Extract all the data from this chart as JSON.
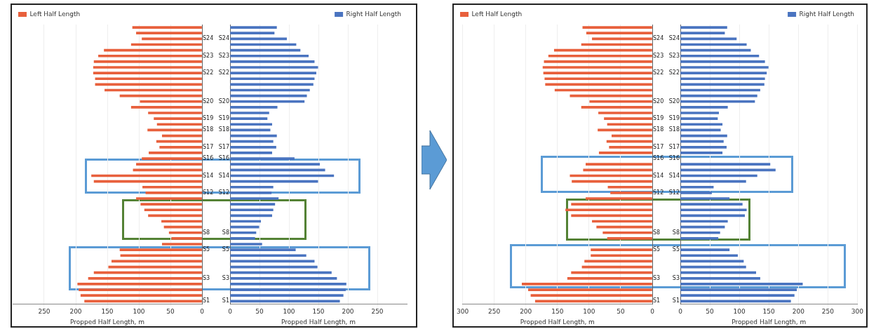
{
  "chart_data": [
    {
      "type": "bar",
      "orientation": "horizontal",
      "categories": [
        null,
        null,
        "S24",
        null,
        null,
        "S23",
        null,
        null,
        "S22",
        null,
        null,
        null,
        null,
        "S20",
        null,
        null,
        "S19",
        null,
        "S18",
        null,
        null,
        "S17",
        null,
        "S16",
        null,
        null,
        "S14",
        null,
        null,
        "S12",
        null,
        null,
        null,
        null,
        null,
        null,
        "S8",
        null,
        null,
        "S5",
        null,
        null,
        null,
        null,
        "S3",
        null,
        null,
        null,
        "S1"
      ],
      "series": [
        {
          "name": "Left Half Length",
          "color": "#e8603c",
          "values": [
            110,
            104,
            95,
            112,
            155,
            164,
            171,
            172,
            172,
            169,
            169,
            154,
            130,
            98,
            112,
            85,
            76,
            71,
            86,
            63,
            72,
            67,
            84,
            95,
            104,
            109,
            175,
            171,
            94,
            89,
            104,
            97,
            91,
            85,
            64,
            60,
            52,
            48,
            63,
            130,
            129,
            143,
            148,
            171,
            180,
            197,
            195,
            192,
            186
          ]
        }
      ],
      "xlim": [
        300,
        0
      ],
      "xticks": [
        250,
        200,
        150,
        100,
        50,
        0
      ],
      "xlabel": "Propped Half Length, m",
      "legend": "top left",
      "grid": "x"
    },
    {
      "type": "bar",
      "orientation": "horizontal",
      "categories": [
        null,
        null,
        "S24",
        null,
        null,
        "S23",
        null,
        null,
        "S22",
        null,
        null,
        null,
        null,
        "S20",
        null,
        null,
        "S19",
        null,
        "S18",
        null,
        null,
        "S17",
        null,
        "S16",
        null,
        null,
        "S14",
        null,
        null,
        "S12",
        null,
        null,
        null,
        null,
        null,
        null,
        "S8",
        null,
        null,
        "S5",
        null,
        null,
        null,
        null,
        "S3",
        null,
        null,
        null,
        "S1"
      ],
      "series": [
        {
          "name": "Right Half Length",
          "color": "#4a74c0",
          "values": [
            79,
            75,
            96,
            112,
            119,
            133,
            143,
            149,
            146,
            143,
            141,
            135,
            130,
            126,
            80,
            66,
            63,
            71,
            68,
            79,
            73,
            78,
            71,
            109,
            152,
            161,
            176,
            149,
            73,
            70,
            82,
            76,
            73,
            71,
            52,
            49,
            44,
            42,
            54,
            111,
            129,
            143,
            148,
            172,
            181,
            197,
            196,
            192,
            186
          ]
        }
      ],
      "xlim": [
        0,
        300
      ],
      "xticks": [
        0,
        50,
        100,
        150,
        200,
        250
      ],
      "xlabel": "Propped Half Length, m",
      "legend": "top right",
      "grid": "x"
    },
    {
      "type": "bar",
      "orientation": "horizontal",
      "categories": [
        null,
        null,
        "S24",
        null,
        null,
        "S23",
        null,
        null,
        "S22",
        null,
        null,
        null,
        null,
        "S20",
        null,
        null,
        "S19",
        null,
        "S18",
        null,
        null,
        "S17",
        null,
        "S16",
        null,
        null,
        "S14",
        null,
        null,
        "S12",
        null,
        null,
        null,
        null,
        null,
        null,
        "S8",
        null,
        null,
        "S5",
        null,
        null,
        null,
        null,
        "S3",
        null,
        null,
        null,
        "S1"
      ],
      "series": [
        {
          "name": "Left Half Length",
          "color": "#e8603c",
          "values": [
            110,
            104,
            95,
            112,
            155,
            164,
            171,
            173,
            172,
            170,
            169,
            154,
            130,
            99,
            112,
            85,
            76,
            71,
            86,
            64,
            72,
            68,
            84,
            null,
            105,
            109,
            130,
            127,
            70,
            66,
            105,
            128,
            137,
            128,
            95,
            88,
            78,
            71,
            null,
            97,
            97,
            107,
            111,
            128,
            134,
            206,
            196,
            192,
            185
          ]
        }
      ],
      "xlim": [
        300,
        0
      ],
      "xticks": [
        300,
        250,
        200,
        150,
        100,
        50,
        0
      ],
      "xlabel": "Propped Half Length, m",
      "legend": "top left",
      "grid": "x"
    },
    {
      "type": "bar",
      "orientation": "horizontal",
      "categories": [
        null,
        null,
        "S24",
        null,
        null,
        "S23",
        null,
        null,
        "S22",
        null,
        null,
        null,
        null,
        "S20",
        null,
        null,
        "S19",
        null,
        "S18",
        null,
        null,
        "S17",
        null,
        "S16",
        null,
        null,
        "S14",
        null,
        null,
        "S12",
        null,
        null,
        null,
        null,
        null,
        null,
        "S8",
        null,
        null,
        "S5",
        null,
        null,
        null,
        null,
        "S3",
        null,
        null,
        null,
        "S1"
      ],
      "series": [
        {
          "name": "Right Half Length",
          "color": "#4a74c0",
          "values": [
            79,
            75,
            95,
            112,
            119,
            133,
            143,
            149,
            146,
            143,
            142,
            135,
            130,
            126,
            80,
            65,
            63,
            71,
            68,
            79,
            73,
            78,
            71,
            null,
            152,
            161,
            130,
            111,
            56,
            53,
            83,
            105,
            112,
            109,
            80,
            75,
            67,
            64,
            null,
            83,
            97,
            107,
            111,
            128,
            135,
            207,
            197,
            193,
            187
          ]
        }
      ],
      "xlim": [
        0,
        300
      ],
      "xticks": [
        0,
        50,
        100,
        150,
        200,
        250,
        300
      ],
      "xlabel": "Propped Half Length, m",
      "legend": "top right",
      "grid": "x"
    }
  ]
}
